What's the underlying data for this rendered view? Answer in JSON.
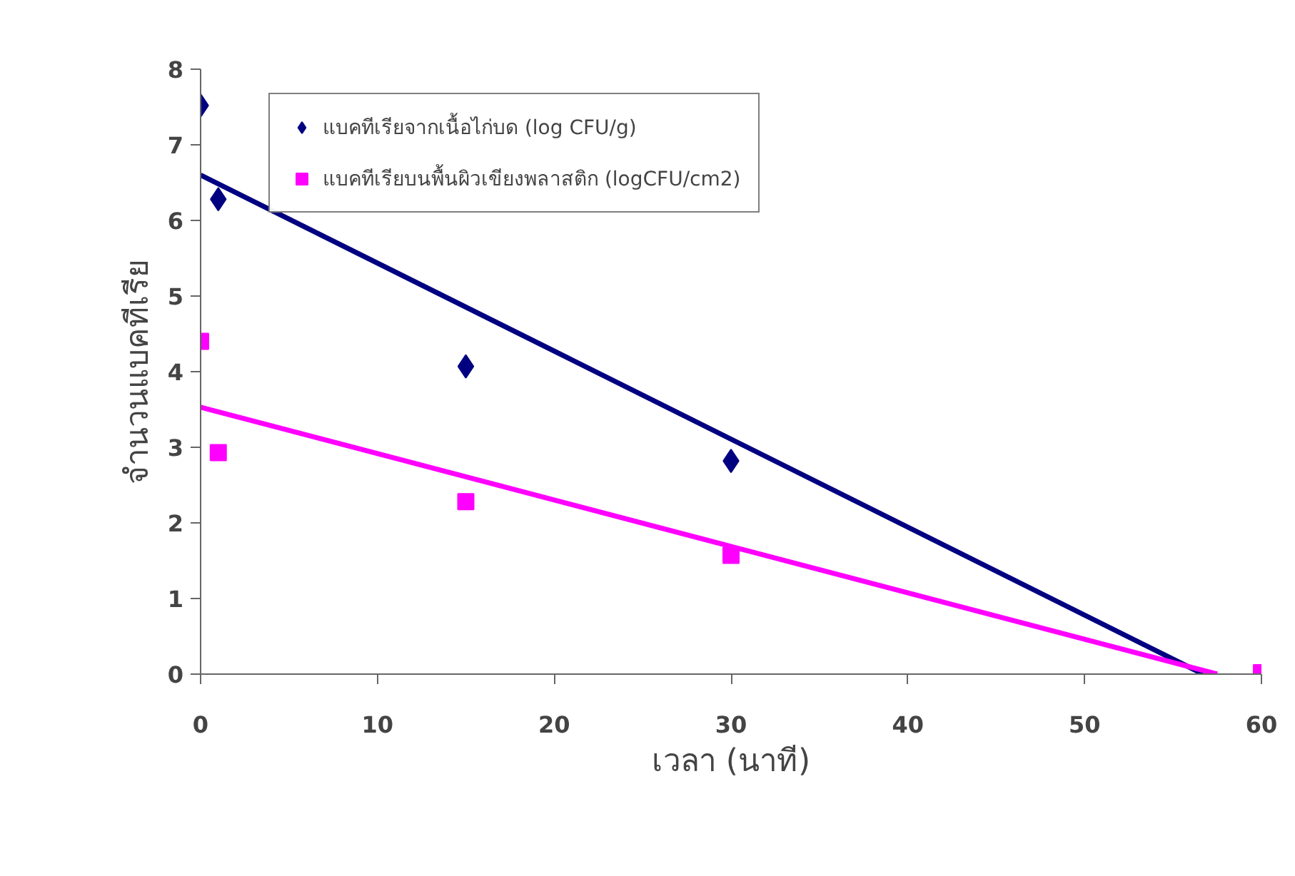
{
  "chart_data": {
    "type": "scatter",
    "xlabel": "เวลา (นาที)",
    "ylabel": "จำนวนแบคทีเรีย",
    "xlim": [
      0,
      60
    ],
    "xticks": [
      0,
      10,
      20,
      30,
      40,
      50,
      60
    ],
    "ylim": [
      0,
      8
    ],
    "yticks": [
      0,
      1,
      2,
      3,
      4,
      5,
      6,
      7,
      8
    ],
    "grid": false,
    "legend": "top left",
    "series": [
      {
        "name": "แบคทีเรียจากเนื้อไก่บด (log CFU/g)",
        "color": "#000080",
        "marker": "diamond",
        "x": [
          0,
          1,
          15,
          30
        ],
        "values": [
          7.52,
          6.28,
          4.07,
          2.82
        ]
      },
      {
        "name": "แบคทีเรียบนพื้นผิวเขียงพลาสติก (logCFU/cm2)",
        "color": "#ff00ff",
        "marker": "square",
        "x": [
          0,
          1,
          15,
          30,
          60
        ],
        "values": [
          4.4,
          2.93,
          2.28,
          1.57,
          0.02
        ]
      },
      {
        "type": "line",
        "color": "#000080",
        "x": [
          0,
          56.7
        ],
        "values": [
          6.6,
          0
        ]
      },
      {
        "type": "line",
        "color": "#ff00ff",
        "x": [
          0,
          57.5
        ],
        "values": [
          3.53,
          0
        ]
      }
    ]
  }
}
